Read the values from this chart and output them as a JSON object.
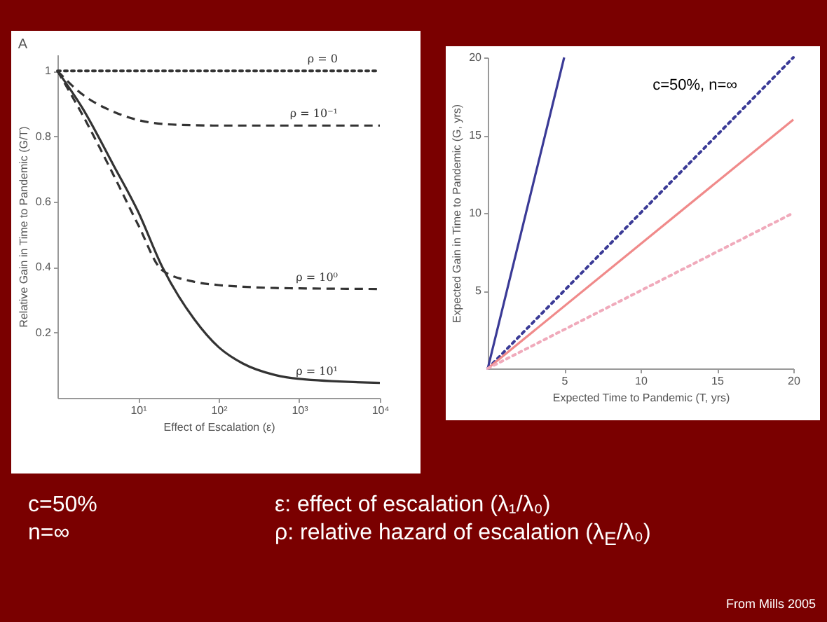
{
  "chart_data": [
    {
      "type": "line",
      "title": "A",
      "xlabel": "Effect of Escalation (ε)",
      "ylabel": "Relative Gain in Time to Pandemic (G/T)",
      "log": "x",
      "xlim": [
        1,
        10000
      ],
      "ylim": [
        0,
        1.05
      ],
      "xticks": [
        {
          "value": 10,
          "label": "10¹"
        },
        {
          "value": 100,
          "label": "10²"
        },
        {
          "value": 1000,
          "label": "10³"
        },
        {
          "value": 10000,
          "label": "10⁴"
        }
      ],
      "yticks": [
        {
          "value": 0.2,
          "label": "0.2"
        },
        {
          "value": 0.4,
          "label": "0.4"
        },
        {
          "value": 0.6,
          "label": "0.6"
        },
        {
          "value": 0.8,
          "label": "0.8"
        },
        {
          "value": 1,
          "label": "1"
        }
      ],
      "legend": false,
      "x": [
        1,
        2,
        5,
        10,
        20,
        50,
        100,
        200,
        500,
        1000,
        10000
      ],
      "series": [
        {
          "name": "ρ = 0",
          "color": "#333333",
          "line_style": "dotted",
          "values": [
            1,
            1,
            1,
            1,
            1,
            1,
            1,
            1,
            1,
            1,
            1
          ]
        },
        {
          "name": "ρ = 10⁻¹",
          "color": "#333333",
          "line_style": "dashed",
          "values": [
            1,
            0.93,
            0.875,
            0.85,
            0.838,
            0.834,
            0.833,
            0.833,
            0.833,
            0.833,
            0.833
          ]
        },
        {
          "name": "ρ = 10⁰",
          "color": "#333333",
          "line_style": "dashed",
          "values": [
            1,
            0.87,
            0.68,
            0.53,
            0.39,
            0.355,
            0.345,
            0.34,
            0.336,
            0.335,
            0.333
          ]
        },
        {
          "name": "ρ = 10¹",
          "color": "#333333",
          "line_style": "solid",
          "values": [
            1,
            0.89,
            0.71,
            0.57,
            0.4,
            0.24,
            0.155,
            0.105,
            0.07,
            0.058,
            0.046
          ]
        }
      ]
    },
    {
      "type": "line",
      "xlabel": "Expected Time to Pandemic (T, yrs)",
      "ylabel": "Expected Gain in Time to Pandemic (G, yrs)",
      "xlim": [
        0,
        20
      ],
      "ylim": [
        0,
        20
      ],
      "xticks": [
        5,
        10,
        15,
        20
      ],
      "yticks": [
        5,
        10,
        15,
        20
      ],
      "legend": false,
      "annotations": [
        "c=50%, n=∞"
      ],
      "series": [
        {
          "color": "#3a3a96",
          "line_style": "solid",
          "x": [
            0,
            5
          ],
          "values": [
            0,
            20
          ]
        },
        {
          "color": "#3a3a96",
          "line_style": "dotted",
          "x": [
            0,
            20
          ],
          "values": [
            0,
            20
          ]
        },
        {
          "color": "#f08a8a",
          "line_style": "solid",
          "x": [
            0,
            20
          ],
          "values": [
            0,
            16
          ]
        },
        {
          "color": "#f0aabb",
          "line_style": "dotted",
          "x": [
            0,
            20
          ],
          "values": [
            0,
            10
          ]
        }
      ]
    },
    {
      "type": "other",
      "annotations": [
        "c=50%",
        "n=∞",
        "ε: effect of escalation (λ₁/λ₀)",
        "ρ: relative hazard of escalation (λ$_{E}$/λ₀)",
        "From Mills 2005"
      ]
    }
  ]
}
